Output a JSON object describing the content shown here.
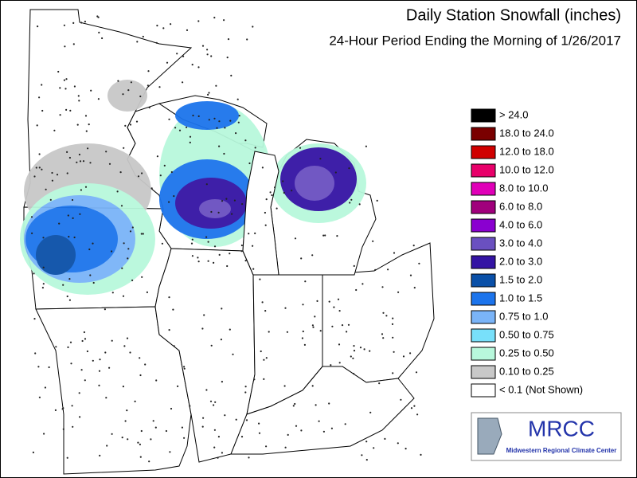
{
  "header": {
    "title": "Daily Station Snowfall (inches)",
    "subtitle": "24-Hour Period Ending the Morning of 1/26/2017"
  },
  "legend": [
    {
      "label": "> 24.0",
      "color": "#000000"
    },
    {
      "label": "18.0 to 24.0",
      "color": "#7a0000"
    },
    {
      "label": "12.0 to 18.0",
      "color": "#d00000"
    },
    {
      "label": "10.0 to 12.0",
      "color": "#e8006a"
    },
    {
      "label": "8.0 to 10.0",
      "color": "#e000b8"
    },
    {
      "label": "6.0 to 8.0",
      "color": "#a0007c"
    },
    {
      "label": "4.0 to 6.0",
      "color": "#8a00d0"
    },
    {
      "label": "3.0 to 4.0",
      "color": "#6a50c0"
    },
    {
      "label": "2.0 to 3.0",
      "color": "#3414a4"
    },
    {
      "label": "1.5 to 2.0",
      "color": "#0a50a8"
    },
    {
      "label": "1.0 to 1.5",
      "color": "#1c74ec"
    },
    {
      "label": "0.75 to 1.0",
      "color": "#7ab4f8"
    },
    {
      "label": "0.50 to 0.75",
      "color": "#78e0fa"
    },
    {
      "label": "0.25 to 0.50",
      "color": "#b8f8dc"
    },
    {
      "label": "0.10 to 0.25",
      "color": "#c8c8c8"
    },
    {
      "label": "< 0.1 (Not Shown)",
      "color": "#ffffff"
    }
  ],
  "logo": {
    "name": "MRCC",
    "caption": "Midwestern Regional Climate Center"
  }
}
